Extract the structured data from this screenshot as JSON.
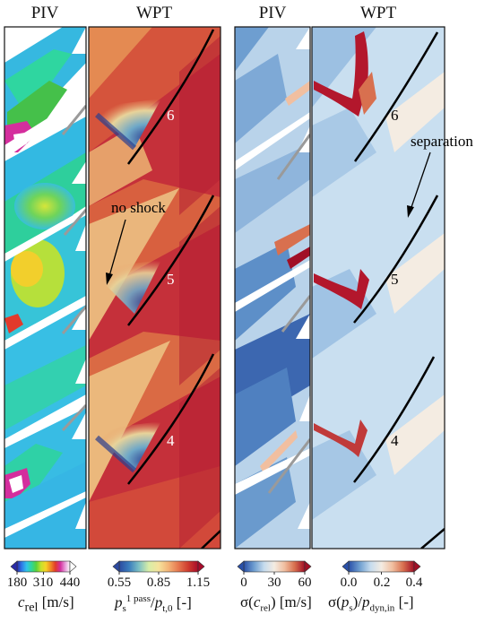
{
  "panels": [
    {
      "header": "PIV",
      "kind": "piv_mean"
    },
    {
      "header": "WPT",
      "kind": "wpt_mean"
    },
    {
      "header": "PIV",
      "kind": "piv_std"
    },
    {
      "header": "WPT",
      "kind": "wpt_std"
    }
  ],
  "blade_labels": [
    "6",
    "5",
    "4"
  ],
  "annotations": {
    "no_shock": "no shock",
    "separation": "separation"
  },
  "colorbars": [
    {
      "ticks": [
        "180",
        "310",
        "440"
      ],
      "label_var": "c",
      "label_sub": "rel",
      "label_unit": " [m/s]",
      "colors": [
        "#2a2aa8",
        "#2f7be8",
        "#31c3ea",
        "#2fd69a",
        "#58d23b",
        "#c8e22c",
        "#f6d325",
        "#f08a22",
        "#e23a2b",
        "#d42e9d",
        "#e79ad9",
        "#ffffff"
      ]
    },
    {
      "ticks": [
        "0.55",
        "0.85",
        "1.15"
      ],
      "label_html": "p<sub>s</sub><sup>1 pass</sup>/p<sub>t,0</sub> [-]",
      "colors": [
        "#2c4aa0",
        "#3b7dbd",
        "#7cc0c4",
        "#d8eea7",
        "#f6e39c",
        "#f4b477",
        "#e6784f",
        "#cf3b2e",
        "#a80b2a"
      ]
    },
    {
      "ticks": [
        "0",
        "30",
        "60"
      ],
      "label_html": "σ(c<sub>rel</sub>) [m/s]",
      "colors": [
        "#2a50a8",
        "#6e9ed0",
        "#c6dcee",
        "#f4ece2",
        "#f1bfa0",
        "#d8704f",
        "#a10f26"
      ]
    },
    {
      "ticks": [
        "0.0",
        "0.2",
        "0.4"
      ],
      "label_html": "σ(p<sub>s</sub>)/p<sub>dyn,in</sub> [-]",
      "colors": [
        "#2a50a8",
        "#6e9ed0",
        "#c6dcee",
        "#f4ece2",
        "#f1bfa0",
        "#d8704f",
        "#a10f26"
      ]
    }
  ],
  "colors": {
    "wpt_mean_base": "#c5303a",
    "wpt_mean_low": "#e9b27b",
    "wpt_mean_shock": "#3b5fae",
    "piv_std_base": "#b9d3ea",
    "piv_std_dark": "#3c67b0",
    "wpt_std_base": "#c9dff0",
    "wpt_std_hot": "#b3172c"
  }
}
